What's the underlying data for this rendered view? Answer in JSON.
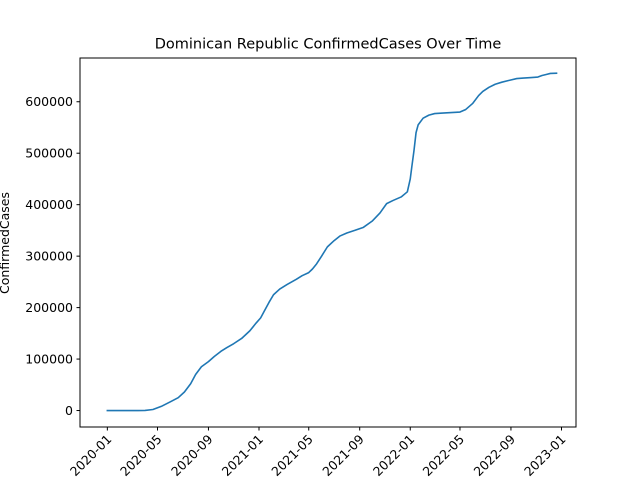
{
  "chart_data": {
    "type": "line",
    "title": "Dominican Republic  ConfirmedCases Over Time",
    "xlabel": "",
    "ylabel": "ConfirmedCases",
    "xlim": [
      "2019-10-27",
      "2023-02-05"
    ],
    "ylim": [
      -32000,
      685000
    ],
    "grid": false,
    "x_ticks": [
      "2020-01",
      "2020-05",
      "2020-09",
      "2021-01",
      "2021-05",
      "2021-09",
      "2022-01",
      "2022-05",
      "2022-09",
      "2023-01"
    ],
    "y_ticks": [
      0,
      100000,
      200000,
      300000,
      400000,
      500000,
      600000
    ],
    "series": [
      {
        "name": "",
        "color": "#1f77b4",
        "x": [
          "2020-01-01",
          "2020-02-15",
          "2020-03-15",
          "2020-04-01",
          "2020-04-20",
          "2020-05-10",
          "2020-06-01",
          "2020-06-20",
          "2020-07-05",
          "2020-07-20",
          "2020-08-01",
          "2020-08-15",
          "2020-09-01",
          "2020-09-15",
          "2020-10-01",
          "2020-10-15",
          "2020-11-01",
          "2020-11-20",
          "2020-12-10",
          "2020-12-25",
          "2021-01-05",
          "2021-01-15",
          "2021-01-25",
          "2021-02-05",
          "2021-02-20",
          "2021-03-10",
          "2021-04-01",
          "2021-04-15",
          "2021-05-01",
          "2021-05-10",
          "2021-05-20",
          "2021-06-01",
          "2021-06-15",
          "2021-07-01",
          "2021-07-15",
          "2021-08-01",
          "2021-08-20",
          "2021-09-10",
          "2021-10-01",
          "2021-10-20",
          "2021-11-05",
          "2021-11-20",
          "2021-12-10",
          "2021-12-25",
          "2022-01-01",
          "2022-01-05",
          "2022-01-10",
          "2022-01-15",
          "2022-01-20",
          "2022-02-01",
          "2022-02-15",
          "2022-03-01",
          "2022-03-20",
          "2022-04-10",
          "2022-05-01",
          "2022-05-15",
          "2022-06-01",
          "2022-06-15",
          "2022-06-25",
          "2022-07-10",
          "2022-07-25",
          "2022-08-10",
          "2022-08-25",
          "2022-09-15",
          "2022-10-01",
          "2022-10-20",
          "2022-11-05",
          "2022-11-15",
          "2022-11-25",
          "2022-12-05",
          "2022-12-20"
        ],
        "y": [
          0,
          0,
          0,
          200,
          2000,
          8000,
          17000,
          25000,
          36000,
          52000,
          70000,
          85000,
          95000,
          105000,
          115000,
          122000,
          130000,
          140000,
          155000,
          170000,
          180000,
          195000,
          210000,
          225000,
          236000,
          245000,
          255000,
          262000,
          268000,
          275000,
          285000,
          300000,
          318000,
          330000,
          339000,
          345000,
          350000,
          356000,
          368000,
          384000,
          402000,
          408000,
          415000,
          425000,
          450000,
          475000,
          505000,
          540000,
          555000,
          568000,
          574000,
          577000,
          578000,
          579000,
          580000,
          585000,
          597000,
          612000,
          620000,
          628000,
          634000,
          638000,
          641000,
          645000,
          646000,
          647000,
          648000,
          651000,
          653000,
          655000,
          655500
        ]
      }
    ]
  }
}
